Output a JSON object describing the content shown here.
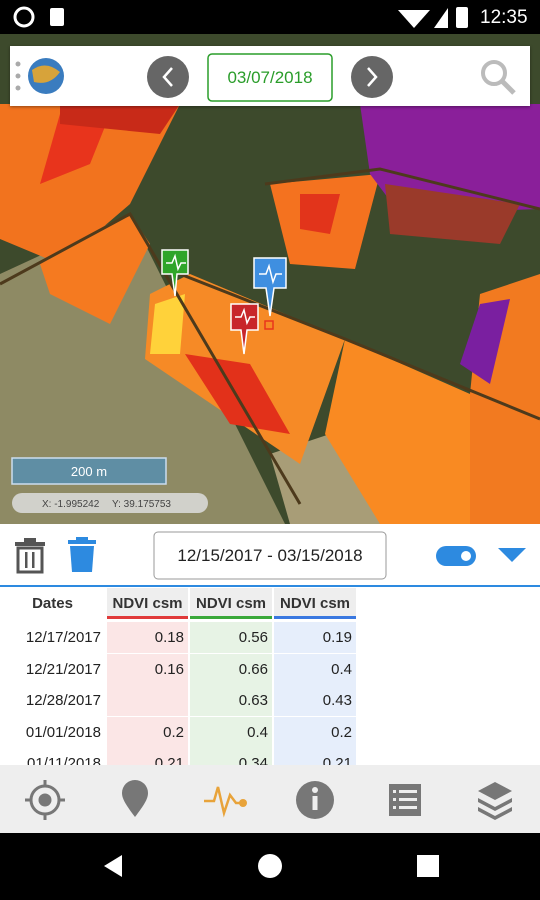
{
  "status_bar": {
    "time": "12:35"
  },
  "toolbar": {
    "date": "03/07/2018"
  },
  "map": {
    "scale": "200 m",
    "coordinates": {
      "x": "X: -1.995242",
      "y": "Y: 39.175753"
    }
  },
  "controls": {
    "date_range": "12/15/2017 - 03/15/2018"
  },
  "table": {
    "headers": [
      "Dates",
      "NDVI csm",
      "NDVI csm",
      "NDVI csm"
    ],
    "rows": [
      [
        "12/17/2017",
        0.18,
        0.56,
        0.19
      ],
      [
        "12/21/2017",
        0.16,
        0.66,
        0.4
      ],
      [
        "12/28/2017",
        null,
        0.63,
        0.43
      ],
      [
        "01/01/2018",
        0.2,
        0.4,
        0.2
      ],
      [
        "01/11/2018",
        0.21,
        0.34,
        0.21
      ]
    ]
  }
}
